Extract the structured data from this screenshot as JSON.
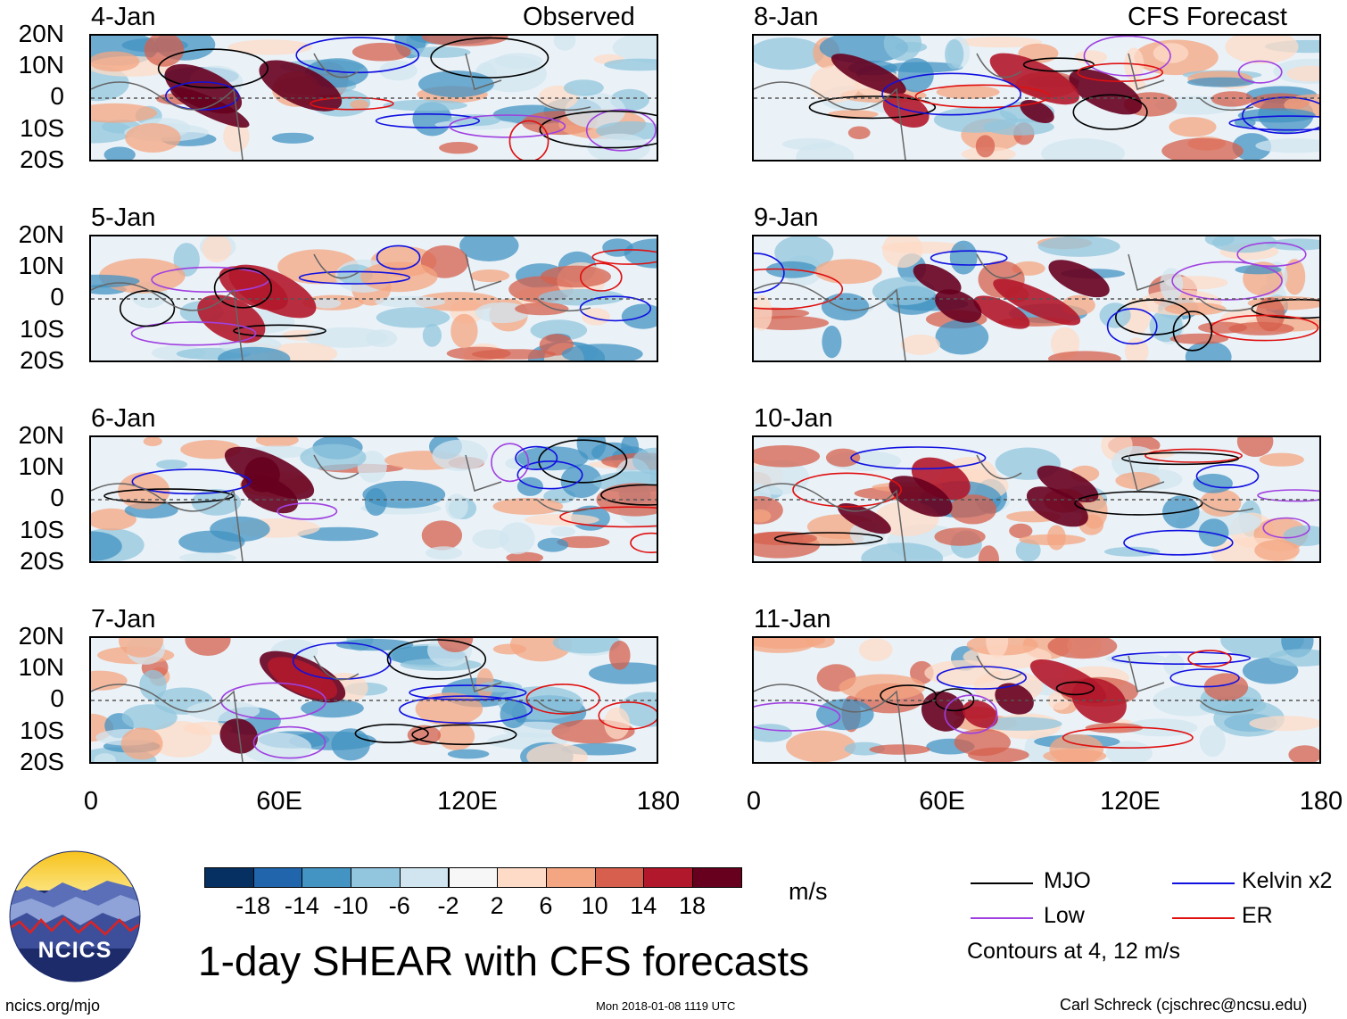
{
  "panel_labels": {
    "observed": "Observed",
    "forecast": "CFS Forecast"
  },
  "panels": [
    {
      "date": "4-Jan",
      "side": "observed"
    },
    {
      "date": "5-Jan",
      "side": "observed"
    },
    {
      "date": "6-Jan",
      "side": "observed"
    },
    {
      "date": "7-Jan",
      "side": "observed"
    },
    {
      "date": "8-Jan",
      "side": "forecast"
    },
    {
      "date": "9-Jan",
      "side": "forecast"
    },
    {
      "date": "10-Jan",
      "side": "forecast"
    },
    {
      "date": "11-Jan",
      "side": "forecast"
    }
  ],
  "lat_ticks": [
    "20N",
    "10N",
    "0",
    "10S",
    "20S"
  ],
  "lon_ticks": [
    "0",
    "60E",
    "120E",
    "180"
  ],
  "colorbar": {
    "unit": "m/s",
    "colors": [
      "#053061",
      "#2166ac",
      "#4393c3",
      "#92c5de",
      "#d1e5f0",
      "#f7f7f7",
      "#fddbc7",
      "#f4a582",
      "#d6604d",
      "#b2182b",
      "#67001f"
    ],
    "labels": [
      "-18",
      "-14",
      "-10",
      "-6",
      "-2",
      "2",
      "6",
      "10",
      "14",
      "18"
    ]
  },
  "legend": {
    "items": [
      {
        "label": "MJO",
        "color": "#000000"
      },
      {
        "label": "Kelvin x2",
        "color": "#1010e0"
      },
      {
        "label": "Low",
        "color": "#a040e0"
      },
      {
        "label": "ER",
        "color": "#e01010"
      }
    ],
    "contours_note": "Contours at 4, 12 m/s"
  },
  "title": "1-day SHEAR with CFS forecasts",
  "footer": {
    "left": "ncics.org/mjo",
    "center": "Mon 2018-01-08 1119 UTC",
    "right": "Carl Schreck (cjschrec@ncsu.edu)"
  },
  "logo": {
    "text": "NCICS"
  }
}
